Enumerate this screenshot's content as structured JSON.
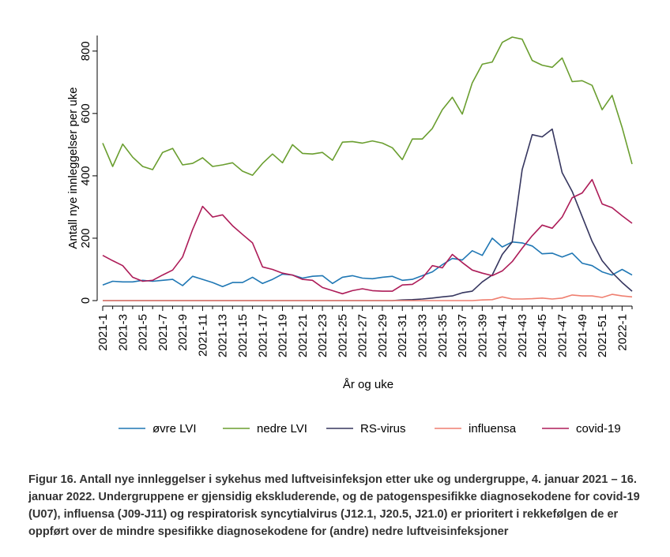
{
  "caption": "Figur 16. Antall nye innleggelser i sykehus med luftveisinfeksjon etter uke og undergruppe, 4. januar 2021 – 16. januar 2022. Undergruppene er gjensidig ekskluderende, og de patogenspesifikke diagnosekodene for covid-19 (U07), influensa (J09-J11) og respiratorisk syncytialvirus (J12.1, J20.5, J21.0) er prioritert i rekkefølgen de er oppført over de mindre spesifikke diagnosekodene for (andre) nedre luftveisinfeksjoner",
  "chart_data": {
    "type": "line",
    "xlabel": "År og uke",
    "ylabel": "Antall nye innleggelser per uke",
    "ylim": [
      0,
      850
    ],
    "yticks": [
      0,
      200,
      400,
      600,
      800
    ],
    "grid": false,
    "legend_position": "bottom",
    "categories": [
      "2021-1",
      "2021-2",
      "2021-3",
      "2021-4",
      "2021-5",
      "2021-6",
      "2021-7",
      "2021-8",
      "2021-9",
      "2021-10",
      "2021-11",
      "2021-12",
      "2021-13",
      "2021-14",
      "2021-15",
      "2021-16",
      "2021-17",
      "2021-18",
      "2021-19",
      "2021-20",
      "2021-21",
      "2021-22",
      "2021-23",
      "2021-24",
      "2021-25",
      "2021-26",
      "2021-27",
      "2021-28",
      "2021-29",
      "2021-30",
      "2021-31",
      "2021-32",
      "2021-33",
      "2021-34",
      "2021-35",
      "2021-36",
      "2021-37",
      "2021-38",
      "2021-39",
      "2021-40",
      "2021-41",
      "2021-42",
      "2021-43",
      "2021-44",
      "2021-45",
      "2021-46",
      "2021-47",
      "2021-48",
      "2021-49",
      "2021-50",
      "2021-51",
      "2021-52",
      "2022-1",
      "2022-2"
    ],
    "tick_labels": [
      "2021-1",
      "2021-3",
      "2021-5",
      "2021-7",
      "2021-9",
      "2021-11",
      "2021-13",
      "2021-15",
      "2021-17",
      "2021-19",
      "2021-21",
      "2021-23",
      "2021-25",
      "2021-27",
      "2021-29",
      "2021-31",
      "2021-33",
      "2021-35",
      "2021-37",
      "2021-39",
      "2021-41",
      "2021-43",
      "2021-45",
      "2021-47",
      "2021-49",
      "2021-51",
      "2022-1"
    ],
    "series": [
      {
        "name": "øvre LVI",
        "color": "#1f77b4",
        "values": [
          50,
          62,
          60,
          60,
          65,
          62,
          65,
          68,
          48,
          78,
          68,
          58,
          45,
          58,
          58,
          75,
          55,
          68,
          85,
          82,
          72,
          78,
          80,
          55,
          75,
          80,
          72,
          70,
          75,
          78,
          65,
          68,
          80,
          92,
          115,
          135,
          130,
          160,
          145,
          200,
          172,
          188,
          185,
          175,
          150,
          152,
          140,
          152,
          120,
          112,
          92,
          82,
          100,
          82
        ]
      },
      {
        "name": "nedre LVI",
        "color": "#6a9e2f",
        "values": [
          505,
          430,
          502,
          460,
          430,
          420,
          475,
          488,
          435,
          440,
          458,
          430,
          435,
          442,
          415,
          402,
          440,
          470,
          442,
          500,
          472,
          470,
          475,
          450,
          508,
          510,
          505,
          512,
          505,
          490,
          452,
          518,
          518,
          552,
          612,
          652,
          598,
          698,
          758,
          765,
          828,
          845,
          838,
          770,
          755,
          748,
          778,
          702,
          705,
          690,
          612,
          658,
          555,
          438
        ]
      },
      {
        "name": "RS-virus",
        "color": "#36365f",
        "values": [
          0,
          0,
          0,
          0,
          0,
          0,
          0,
          0,
          0,
          0,
          0,
          0,
          0,
          0,
          0,
          0,
          0,
          0,
          0,
          0,
          0,
          0,
          0,
          0,
          0,
          0,
          0,
          0,
          0,
          0,
          2,
          3,
          5,
          8,
          12,
          15,
          25,
          30,
          60,
          82,
          148,
          188,
          420,
          532,
          525,
          550,
          410,
          350,
          270,
          190,
          128,
          90,
          58,
          30
        ]
      },
      {
        "name": "influensa",
        "color": "#ef7f70",
        "values": [
          0,
          0,
          0,
          0,
          0,
          0,
          0,
          0,
          0,
          0,
          0,
          0,
          0,
          0,
          0,
          0,
          0,
          0,
          0,
          0,
          0,
          0,
          0,
          0,
          0,
          0,
          0,
          0,
          0,
          0,
          0,
          0,
          0,
          0,
          0,
          0,
          0,
          0,
          2,
          3,
          12,
          5,
          5,
          6,
          8,
          5,
          8,
          18,
          15,
          15,
          10,
          20,
          15,
          12
        ]
      },
      {
        "name": "covid-19",
        "color": "#ad1c58",
        "values": [
          145,
          128,
          112,
          75,
          62,
          65,
          82,
          98,
          140,
          228,
          302,
          268,
          275,
          240,
          212,
          185,
          108,
          100,
          88,
          82,
          68,
          65,
          42,
          32,
          22,
          32,
          38,
          32,
          30,
          30,
          50,
          52,
          72,
          112,
          105,
          148,
          122,
          98,
          88,
          80,
          95,
          125,
          168,
          208,
          242,
          232,
          268,
          330,
          345,
          388,
          310,
          298,
          272,
          248
        ]
      }
    ]
  }
}
